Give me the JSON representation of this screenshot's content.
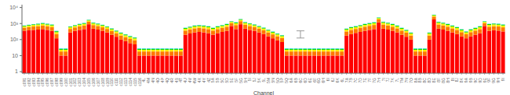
{
  "chart_data": {
    "type": "bar",
    "stacked": true,
    "log": "y",
    "grid": false,
    "xlabel": "Channel",
    "categories": [
      "c091",
      "c092",
      "c093",
      "c094",
      "c095",
      "c096",
      "c097",
      "c098",
      "c099",
      "c100",
      "c101",
      "c102",
      "c103",
      "c104",
      "c105",
      "c106",
      "c107",
      "c108",
      "c109",
      "c110",
      "c111",
      "c112",
      "c113",
      "c114",
      "c115",
      "c116",
      "4L",
      "4M",
      "4N",
      "4O",
      "4P",
      "4Q",
      "4R",
      "4S",
      "4T",
      "4U",
      "4V",
      "4W",
      "4X",
      "4Y",
      "4Z",
      "5A",
      "5B",
      "5C",
      "5D",
      "5E",
      "5F",
      "5G",
      "5H",
      "5I",
      "5J",
      "5K",
      "5L",
      "5M",
      "5N",
      "5O",
      "5P",
      "5Q",
      "6A",
      "6B",
      "6C",
      "6D",
      "6E",
      "6F",
      "6G",
      "6H",
      "6I",
      "6J",
      "6K",
      "6L",
      "7A",
      "7B",
      "7C",
      "7D",
      "7E",
      "7F",
      "7G",
      "7H",
      "7I",
      "7J",
      "7K",
      "7L",
      "7M",
      "7N",
      "7O",
      "8A",
      "8B",
      "8C",
      "8D",
      "8E",
      "8F",
      "8G",
      "8H",
      "8I",
      "8J",
      "8K",
      "9A",
      "9B",
      "9C",
      "9D",
      "9E",
      "9F",
      "9G",
      "9H",
      "9I"
    ],
    "series": [
      {
        "color": "#ff0000",
        "values": [
          350,
          380,
          400,
          420,
          450,
          400,
          350,
          120,
          10,
          10,
          280,
          350,
          400,
          450,
          900,
          480,
          420,
          350,
          280,
          200,
          150,
          100,
          80,
          60,
          50,
          10,
          10,
          10,
          10,
          10,
          10,
          10,
          10,
          10,
          10,
          200,
          240,
          280,
          300,
          280,
          250,
          200,
          250,
          300,
          350,
          700,
          450,
          900,
          480,
          400,
          350,
          280,
          220,
          160,
          120,
          90,
          70,
          10,
          10,
          10,
          10,
          10,
          10,
          10,
          10,
          10,
          10,
          10,
          10,
          10,
          180,
          220,
          260,
          300,
          350,
          400,
          450,
          1200,
          480,
          420,
          350,
          280,
          200,
          150,
          100,
          10,
          10,
          10,
          100,
          1800,
          480,
          420,
          350,
          280,
          220,
          160,
          120,
          160,
          200,
          250,
          700,
          350,
          380,
          360,
          320
        ]
      },
      {
        "color": "#ff7700",
        "values": [
          200,
          220,
          250,
          270,
          300,
          280,
          250,
          100,
          8,
          8,
          180,
          220,
          270,
          300,
          400,
          320,
          280,
          230,
          180,
          140,
          100,
          80,
          60,
          50,
          40,
          8,
          8,
          8,
          8,
          8,
          8,
          8,
          8,
          8,
          8,
          160,
          190,
          220,
          240,
          220,
          200,
          160,
          200,
          240,
          280,
          350,
          350,
          500,
          360,
          300,
          250,
          200,
          160,
          120,
          90,
          70,
          55,
          8,
          8,
          8,
          8,
          8,
          8,
          8,
          8,
          8,
          8,
          8,
          8,
          8,
          140,
          180,
          200,
          240,
          280,
          320,
          360,
          600,
          380,
          340,
          280,
          220,
          160,
          120,
          80,
          8,
          8,
          8,
          80,
          900,
          380,
          340,
          280,
          220,
          180,
          130,
          95,
          130,
          160,
          200,
          350,
          280,
          300,
          290,
          260
        ]
      },
      {
        "color": "#ffee00",
        "values": [
          120,
          140,
          160,
          180,
          200,
          180,
          160,
          70,
          5,
          5,
          120,
          140,
          170,
          200,
          250,
          210,
          185,
          150,
          120,
          95,
          70,
          55,
          45,
          35,
          28,
          5,
          5,
          5,
          5,
          5,
          5,
          5,
          5,
          5,
          5,
          108,
          128,
          150,
          160,
          150,
          135,
          110,
          135,
          160,
          190,
          200,
          235,
          300,
          240,
          200,
          170,
          135,
          108,
          82,
          62,
          48,
          38,
          5,
          5,
          5,
          5,
          5,
          5,
          5,
          5,
          5,
          5,
          5,
          5,
          5,
          95,
          122,
          136,
          162,
          190,
          215,
          242,
          350,
          258,
          230,
          190,
          150,
          108,
          82,
          55,
          5,
          5,
          5,
          55,
          500,
          258,
          230,
          190,
          150,
          122,
          88,
          65,
          88,
          108,
          135,
          200,
          190,
          204,
          196,
          176
        ]
      },
      {
        "color": "#00dd00",
        "values": [
          60,
          70,
          80,
          90,
          100,
          90,
          80,
          40,
          3,
          3,
          60,
          70,
          85,
          100,
          120,
          105,
          92,
          75,
          60,
          48,
          35,
          28,
          22,
          18,
          14,
          3,
          3,
          3,
          3,
          3,
          3,
          3,
          3,
          3,
          3,
          54,
          64,
          75,
          80,
          75,
          68,
          55,
          68,
          80,
          95,
          100,
          118,
          150,
          120,
          100,
          85,
          68,
          54,
          41,
          31,
          24,
          19,
          3,
          3,
          3,
          3,
          3,
          3,
          3,
          3,
          3,
          3,
          3,
          3,
          3,
          48,
          61,
          68,
          81,
          95,
          108,
          121,
          180,
          129,
          115,
          95,
          75,
          54,
          41,
          28,
          3,
          3,
          3,
          28,
          250,
          129,
          115,
          95,
          75,
          61,
          44,
          32,
          44,
          54,
          68,
          100,
          95,
          102,
          98,
          88
        ]
      },
      {
        "color": "#00cccc",
        "values": [
          25,
          28,
          32,
          36,
          40,
          36,
          32,
          18,
          2,
          2,
          24,
          28,
          34,
          40,
          50,
          42,
          37,
          30,
          24,
          19,
          14,
          11,
          9,
          7,
          6,
          2,
          2,
          2,
          2,
          2,
          2,
          2,
          2,
          2,
          2,
          22,
          26,
          30,
          32,
          30,
          27,
          22,
          27,
          32,
          38,
          40,
          47,
          60,
          48,
          40,
          34,
          27,
          22,
          17,
          13,
          10,
          8,
          2,
          2,
          2,
          2,
          2,
          2,
          2,
          2,
          2,
          2,
          2,
          2,
          2,
          19,
          24,
          27,
          32,
          38,
          43,
          48,
          70,
          52,
          46,
          38,
          30,
          22,
          17,
          11,
          2,
          2,
          2,
          11,
          100,
          52,
          46,
          38,
          30,
          24,
          18,
          13,
          18,
          22,
          27,
          40,
          38,
          41,
          39,
          35
        ]
      }
    ],
    "ylim": [
      0.8,
      15000
    ],
    "yticks": [
      1,
      10,
      {
        "value": 100,
        "label": "10²"
      },
      {
        "value": 1000,
        "label": "10³"
      },
      {
        "value": 10000,
        "label": "10⁴"
      }
    ],
    "error_bars": [
      {
        "category": "6C",
        "value": 200,
        "minus": 75,
        "plus": 150,
        "color": "#808080"
      }
    ]
  }
}
